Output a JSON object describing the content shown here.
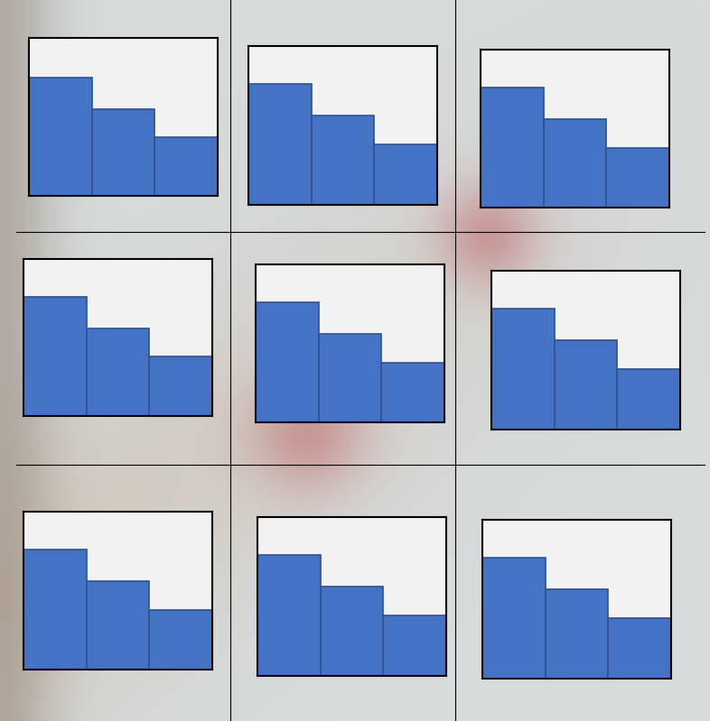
{
  "chart_data": [
    {
      "type": "bar",
      "categories": [
        null,
        null,
        null
      ],
      "values": [
        75,
        55,
        37
      ],
      "color": "#4472c4",
      "ylim": [
        0,
        100
      ],
      "yticks": [],
      "tick_labels": false
    },
    {
      "type": "bar",
      "categories": [
        null,
        null,
        null
      ],
      "values": [
        76,
        56,
        38
      ],
      "color": "#4472c4",
      "ylim": [
        0,
        100
      ],
      "yticks": [],
      "tick_labels": false
    },
    {
      "type": "bar",
      "categories": [
        null,
        null,
        null
      ],
      "values": [
        76,
        56,
        38
      ],
      "color": "#4472c4",
      "ylim": [
        0,
        100
      ],
      "yticks": [],
      "tick_labels": false
    },
    {
      "type": "bar",
      "categories": [
        null,
        null,
        null
      ],
      "values": [
        76,
        56,
        38
      ],
      "color": "#4472c4",
      "ylim": [
        0,
        100
      ],
      "yticks": [],
      "tick_labels": false
    },
    {
      "type": "bar",
      "categories": [
        null,
        null,
        null
      ],
      "values": [
        76,
        56,
        38
      ],
      "color": "#4472c4",
      "ylim": [
        0,
        100
      ],
      "yticks": [],
      "tick_labels": false
    },
    {
      "type": "bar",
      "categories": [
        null,
        null,
        null
      ],
      "values": [
        76,
        56,
        38
      ],
      "color": "#4472c4",
      "ylim": [
        0,
        100
      ],
      "yticks": [],
      "tick_labels": false
    },
    {
      "type": "bar",
      "categories": [
        null,
        null,
        null
      ],
      "values": [
        76,
        56,
        38
      ],
      "color": "#4472c4",
      "ylim": [
        0,
        100
      ],
      "yticks": [],
      "tick_labels": false
    },
    {
      "type": "bar",
      "categories": [
        null,
        null,
        null
      ],
      "values": [
        76,
        56,
        38
      ],
      "color": "#4472c4",
      "ylim": [
        0,
        100
      ],
      "yticks": [],
      "tick_labels": false
    },
    {
      "type": "bar",
      "categories": [
        null,
        null,
        null
      ],
      "values": [
        76,
        56,
        38
      ],
      "color": "#4472c4",
      "ylim": [
        0,
        100
      ],
      "yticks": [],
      "tick_labels": false
    }
  ]
}
